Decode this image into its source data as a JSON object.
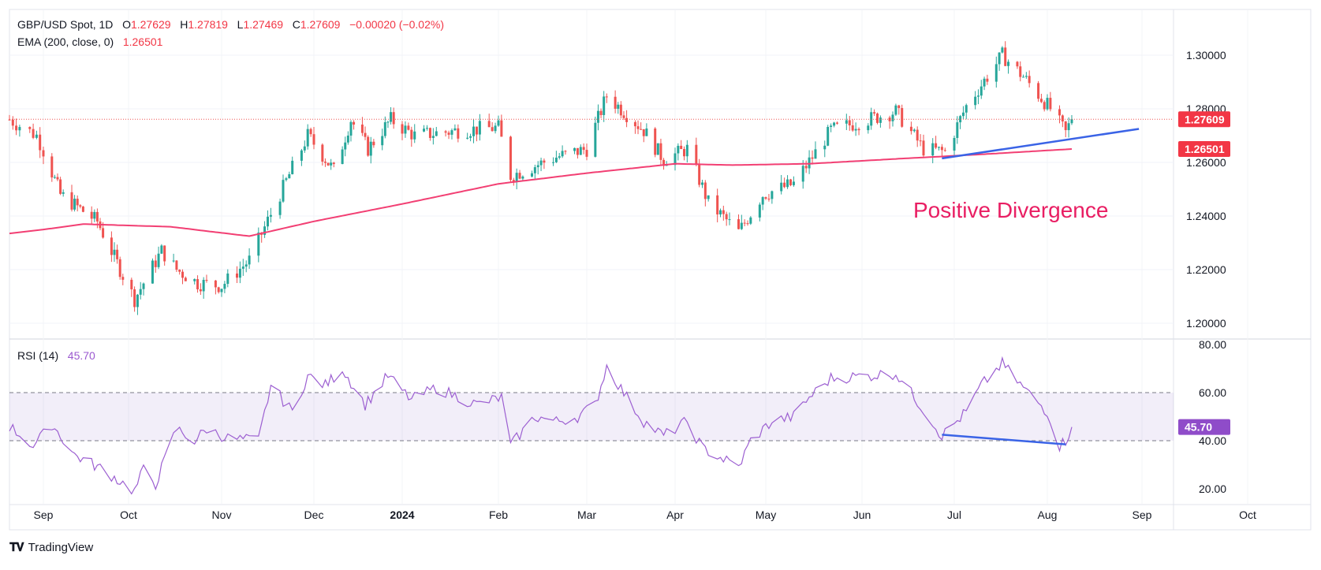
{
  "legend": {
    "symbol": "GBP/USD Spot, 1D",
    "open_label": "O",
    "open": "1.27629",
    "high_label": "H",
    "high": "1.27819",
    "low_label": "L",
    "low": "1.27469",
    "close_label": "C",
    "close": "1.27609",
    "change": "−0.00020 (−0.02%)",
    "ema_label": "EMA (200, close, 0)",
    "ema_value": "1.26501",
    "rsi_label": "RSI (14)",
    "rsi_value": "45.70"
  },
  "annotation": "Positive Divergence",
  "footer": {
    "brand": "TradingView"
  },
  "colors": {
    "up": "#26a69a",
    "down": "#ef5350",
    "ema": "#f23f73",
    "rsi": "#9c5fd1",
    "trendline": "#3a63e6",
    "annotation": "#e91e63",
    "price_tag": "#f23645",
    "rsi_tag": "#8f4cc9"
  },
  "chart_data": [
    {
      "type": "candlestick",
      "title": "GBP/USD Spot, 1D",
      "y_ticks": [
        "1.30000",
        "1.28000",
        "1.26000",
        "1.24000",
        "1.22000",
        "1.20000"
      ],
      "ylim": [
        1.1945,
        1.3115
      ],
      "x_ticks": [
        "Sep",
        "Oct",
        "Nov",
        "Dec",
        "2024",
        "Feb",
        "Mar",
        "Apr",
        "May",
        "Jun",
        "Jul",
        "Aug",
        "Sep",
        "Oct"
      ],
      "last_price": "1.27609",
      "last_price_value": 1.27609,
      "ema_label_value": "1.26501",
      "ema_last": 1.26501,
      "ema_200": [
        {
          "date": "2023-08-22",
          "v": 1.2335
        },
        {
          "date": "2023-09-15",
          "v": 1.237
        },
        {
          "date": "2023-10-15",
          "v": 1.236
        },
        {
          "date": "2023-11-10",
          "v": 1.2325
        },
        {
          "date": "2023-12-01",
          "v": 1.238
        },
        {
          "date": "2024-01-01",
          "v": 1.2445
        },
        {
          "date": "2024-02-01",
          "v": 1.252
        },
        {
          "date": "2024-03-01",
          "v": 1.256
        },
        {
          "date": "2024-04-01",
          "v": 1.2595
        },
        {
          "date": "2024-04-20",
          "v": 1.259
        },
        {
          "date": "2024-05-15",
          "v": 1.2595
        },
        {
          "date": "2024-06-15",
          "v": 1.2615
        },
        {
          "date": "2024-07-10",
          "v": 1.263
        },
        {
          "date": "2024-08-09",
          "v": 1.265
        }
      ],
      "price_path": [
        {
          "date": "2023-08-22",
          "v": 1.276
        },
        {
          "date": "2023-08-30",
          "v": 1.27
        },
        {
          "date": "2023-09-07",
          "v": 1.248
        },
        {
          "date": "2023-09-20",
          "v": 1.238
        },
        {
          "date": "2023-10-03",
          "v": 1.209
        },
        {
          "date": "2023-10-12",
          "v": 1.227
        },
        {
          "date": "2023-10-17",
          "v": 1.22
        },
        {
          "date": "2023-10-24",
          "v": 1.215
        },
        {
          "date": "2023-11-01",
          "v": 1.214
        },
        {
          "date": "2023-11-10",
          "v": 1.2235
        },
        {
          "date": "2023-11-22",
          "v": 1.253
        },
        {
          "date": "2023-11-29",
          "v": 1.27
        },
        {
          "date": "2023-12-08",
          "v": 1.257
        },
        {
          "date": "2023-12-14",
          "v": 1.276
        },
        {
          "date": "2023-12-20",
          "v": 1.265
        },
        {
          "date": "2023-12-28",
          "v": 1.276
        },
        {
          "date": "2024-01-05",
          "v": 1.27
        },
        {
          "date": "2024-01-20",
          "v": 1.272
        },
        {
          "date": "2024-02-01",
          "v": 1.273
        },
        {
          "date": "2024-02-05",
          "v": 1.255
        },
        {
          "date": "2024-02-20",
          "v": 1.262
        },
        {
          "date": "2024-03-01",
          "v": 1.265
        },
        {
          "date": "2024-03-08",
          "v": 1.285
        },
        {
          "date": "2024-03-21",
          "v": 1.272
        },
        {
          "date": "2024-03-28",
          "v": 1.261
        },
        {
          "date": "2024-04-05",
          "v": 1.265
        },
        {
          "date": "2024-04-12",
          "v": 1.245
        },
        {
          "date": "2024-04-22",
          "v": 1.234
        },
        {
          "date": "2024-04-30",
          "v": 1.248
        },
        {
          "date": "2024-05-10",
          "v": 1.252
        },
        {
          "date": "2024-05-22",
          "v": 1.272
        },
        {
          "date": "2024-06-12",
          "v": 1.279
        },
        {
          "date": "2024-06-21",
          "v": 1.265
        },
        {
          "date": "2024-06-28",
          "v": 1.264
        },
        {
          "date": "2024-07-05",
          "v": 1.281
        },
        {
          "date": "2024-07-17",
          "v": 1.3
        },
        {
          "date": "2024-07-24",
          "v": 1.292
        },
        {
          "date": "2024-08-02",
          "v": 1.28
        },
        {
          "date": "2024-08-07",
          "v": 1.271
        },
        {
          "date": "2024-08-09",
          "v": 1.2761
        }
      ],
      "support_trendline": [
        {
          "date": "2024-06-27",
          "v": 1.2615
        },
        {
          "date": "2024-08-31",
          "v": 1.2725
        }
      ]
    },
    {
      "type": "line",
      "title": "RSI (14)",
      "y_ticks": [
        "80.00",
        "60.00",
        "40.00",
        "20.00"
      ],
      "ylim": [
        13.5,
        80
      ],
      "band": [
        40,
        60
      ],
      "last_value": "45.70",
      "last_value_num": 45.7,
      "series": [
        {
          "date": "2023-08-22",
          "v": 46
        },
        {
          "date": "2023-08-29",
          "v": 38
        },
        {
          "date": "2023-09-04",
          "v": 47
        },
        {
          "date": "2023-09-12",
          "v": 34
        },
        {
          "date": "2023-09-22",
          "v": 28
        },
        {
          "date": "2023-10-03",
          "v": 19
        },
        {
          "date": "2023-10-06",
          "v": 28
        },
        {
          "date": "2023-10-10",
          "v": 22
        },
        {
          "date": "2023-10-17",
          "v": 45
        },
        {
          "date": "2023-10-23",
          "v": 40
        },
        {
          "date": "2023-10-27",
          "v": 45
        },
        {
          "date": "2023-11-03",
          "v": 41
        },
        {
          "date": "2023-11-13",
          "v": 40
        },
        {
          "date": "2023-11-17",
          "v": 63
        },
        {
          "date": "2023-11-24",
          "v": 52
        },
        {
          "date": "2023-11-29",
          "v": 67
        },
        {
          "date": "2023-12-05",
          "v": 63
        },
        {
          "date": "2023-12-11",
          "v": 70
        },
        {
          "date": "2023-12-19",
          "v": 55
        },
        {
          "date": "2023-12-27",
          "v": 67
        },
        {
          "date": "2024-01-04",
          "v": 57
        },
        {
          "date": "2024-01-12",
          "v": 62
        },
        {
          "date": "2024-01-25",
          "v": 55
        },
        {
          "date": "2024-02-02",
          "v": 58
        },
        {
          "date": "2024-02-05",
          "v": 38
        },
        {
          "date": "2024-02-13",
          "v": 50
        },
        {
          "date": "2024-02-20",
          "v": 48
        },
        {
          "date": "2024-02-27",
          "v": 50
        },
        {
          "date": "2024-03-04",
          "v": 55
        },
        {
          "date": "2024-03-08",
          "v": 71
        },
        {
          "date": "2024-03-15",
          "v": 58
        },
        {
          "date": "2024-03-21",
          "v": 48
        },
        {
          "date": "2024-03-28",
          "v": 42
        },
        {
          "date": "2024-04-05",
          "v": 48
        },
        {
          "date": "2024-04-10",
          "v": 37
        },
        {
          "date": "2024-04-16",
          "v": 33
        },
        {
          "date": "2024-04-22",
          "v": 29
        },
        {
          "date": "2024-04-26",
          "v": 40
        },
        {
          "date": "2024-05-03",
          "v": 48
        },
        {
          "date": "2024-05-10",
          "v": 50
        },
        {
          "date": "2024-05-15",
          "v": 58
        },
        {
          "date": "2024-05-22",
          "v": 66
        },
        {
          "date": "2024-06-03",
          "v": 67
        },
        {
          "date": "2024-06-12",
          "v": 68
        },
        {
          "date": "2024-06-21",
          "v": 53
        },
        {
          "date": "2024-06-27",
          "v": 42
        },
        {
          "date": "2024-07-05",
          "v": 52
        },
        {
          "date": "2024-07-10",
          "v": 63
        },
        {
          "date": "2024-07-17",
          "v": 72
        },
        {
          "date": "2024-07-24",
          "v": 62
        },
        {
          "date": "2024-08-01",
          "v": 52
        },
        {
          "date": "2024-08-05",
          "v": 38
        },
        {
          "date": "2024-08-07",
          "v": 40
        },
        {
          "date": "2024-08-09",
          "v": 45.7
        }
      ],
      "divergence_line": [
        {
          "date": "2024-06-27",
          "v": 42.5
        },
        {
          "date": "2024-08-07",
          "v": 38.5
        }
      ]
    }
  ]
}
